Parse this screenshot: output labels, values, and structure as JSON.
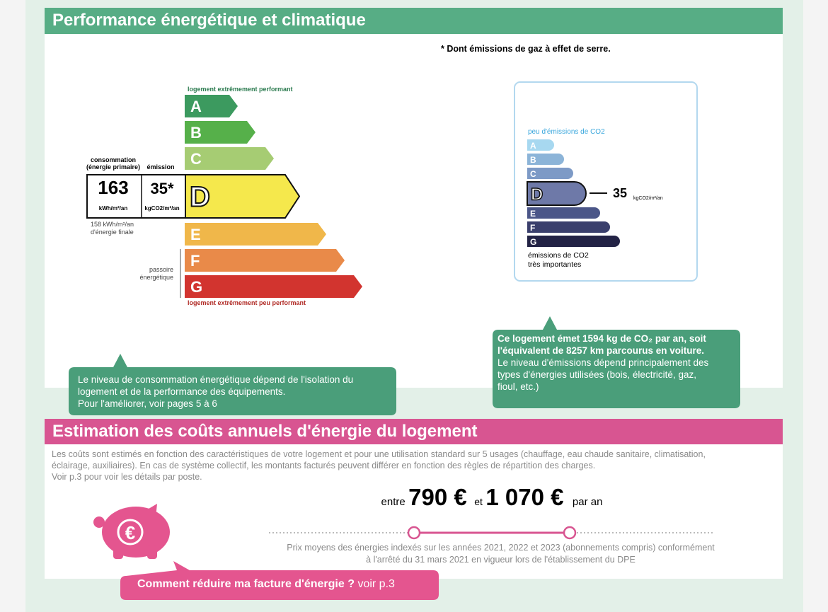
{
  "energy_section": {
    "title": "Performance énergétique et climatique",
    "footnote": "* Dont émissions de gaz à effet de serre.",
    "dpe": {
      "top_label": "logement extrêmement performant",
      "bottom_label": "logement extrêmement peu performant",
      "classes": [
        "A",
        "B",
        "C",
        "D",
        "E",
        "F",
        "G"
      ],
      "consumption_header": [
        "consommation",
        "(énergie primaire)"
      ],
      "emission_header": "émission",
      "consumption_value": "163",
      "consumption_unit": "kWh/m²/an",
      "emission_value": "35*",
      "emission_unit": "kgCO2/m²/an",
      "final_energy": [
        "158 kWh/m²/an",
        "d'énergie finale"
      ],
      "passoire": [
        "passoire",
        "énergétique"
      ]
    },
    "ges": {
      "top_label": "peu d'émissions de CO2",
      "classes": [
        "A",
        "B",
        "C",
        "D",
        "E",
        "F",
        "G"
      ],
      "value": "35",
      "unit": "kgCO2/m²/an",
      "bottom_label": [
        "émissions de CO2",
        "très importantes"
      ]
    },
    "energy_note": [
      "Le niveau de consommation énergétique dépend de l'isolation du",
      "logement et de la performance des équipements.",
      "Pour l'améliorer, voir pages 5 à 6"
    ],
    "co2_note": {
      "bold": [
        "Ce logement émet 1594  kg de CO₂ par an, soit",
        "l'équivalent de 8257 km parcourus en voiture."
      ],
      "text": [
        "Le niveau d'émissions dépend principalement des",
        "types d'énergies utilisées (bois, électricité, gaz,",
        "fioul, etc.)"
      ]
    }
  },
  "cost_section": {
    "title": "Estimation des coûts annuels d'énergie du logement",
    "intro": [
      "Les coûts sont estimés en fonction des caractéristiques de votre logement et pour une utilisation standard sur 5 usages (chauffage, eau chaude sanitaire, climatisation,",
      "éclairage, auxiliaires). En cas de système collectif, les montants facturés peuvent différer en fonction des règles de répartition des charges.",
      "Voir p.3 pour voir les détails par poste."
    ],
    "range": {
      "from_word": "entre",
      "low": "790 €",
      "and_word": "et",
      "high": "1 070 €",
      "per": "par an"
    },
    "note": [
      "Prix moyens des énergies indexés sur les années 2021, 2022 et 2023  (abonnements compris) conformément",
      "à l'arrêté du 31 mars 2021 en vigueur lors de l'établissement du DPE"
    ],
    "button": {
      "text": "Comment réduire ma facture d'énergie ?",
      "link": "voir p.3"
    }
  }
}
